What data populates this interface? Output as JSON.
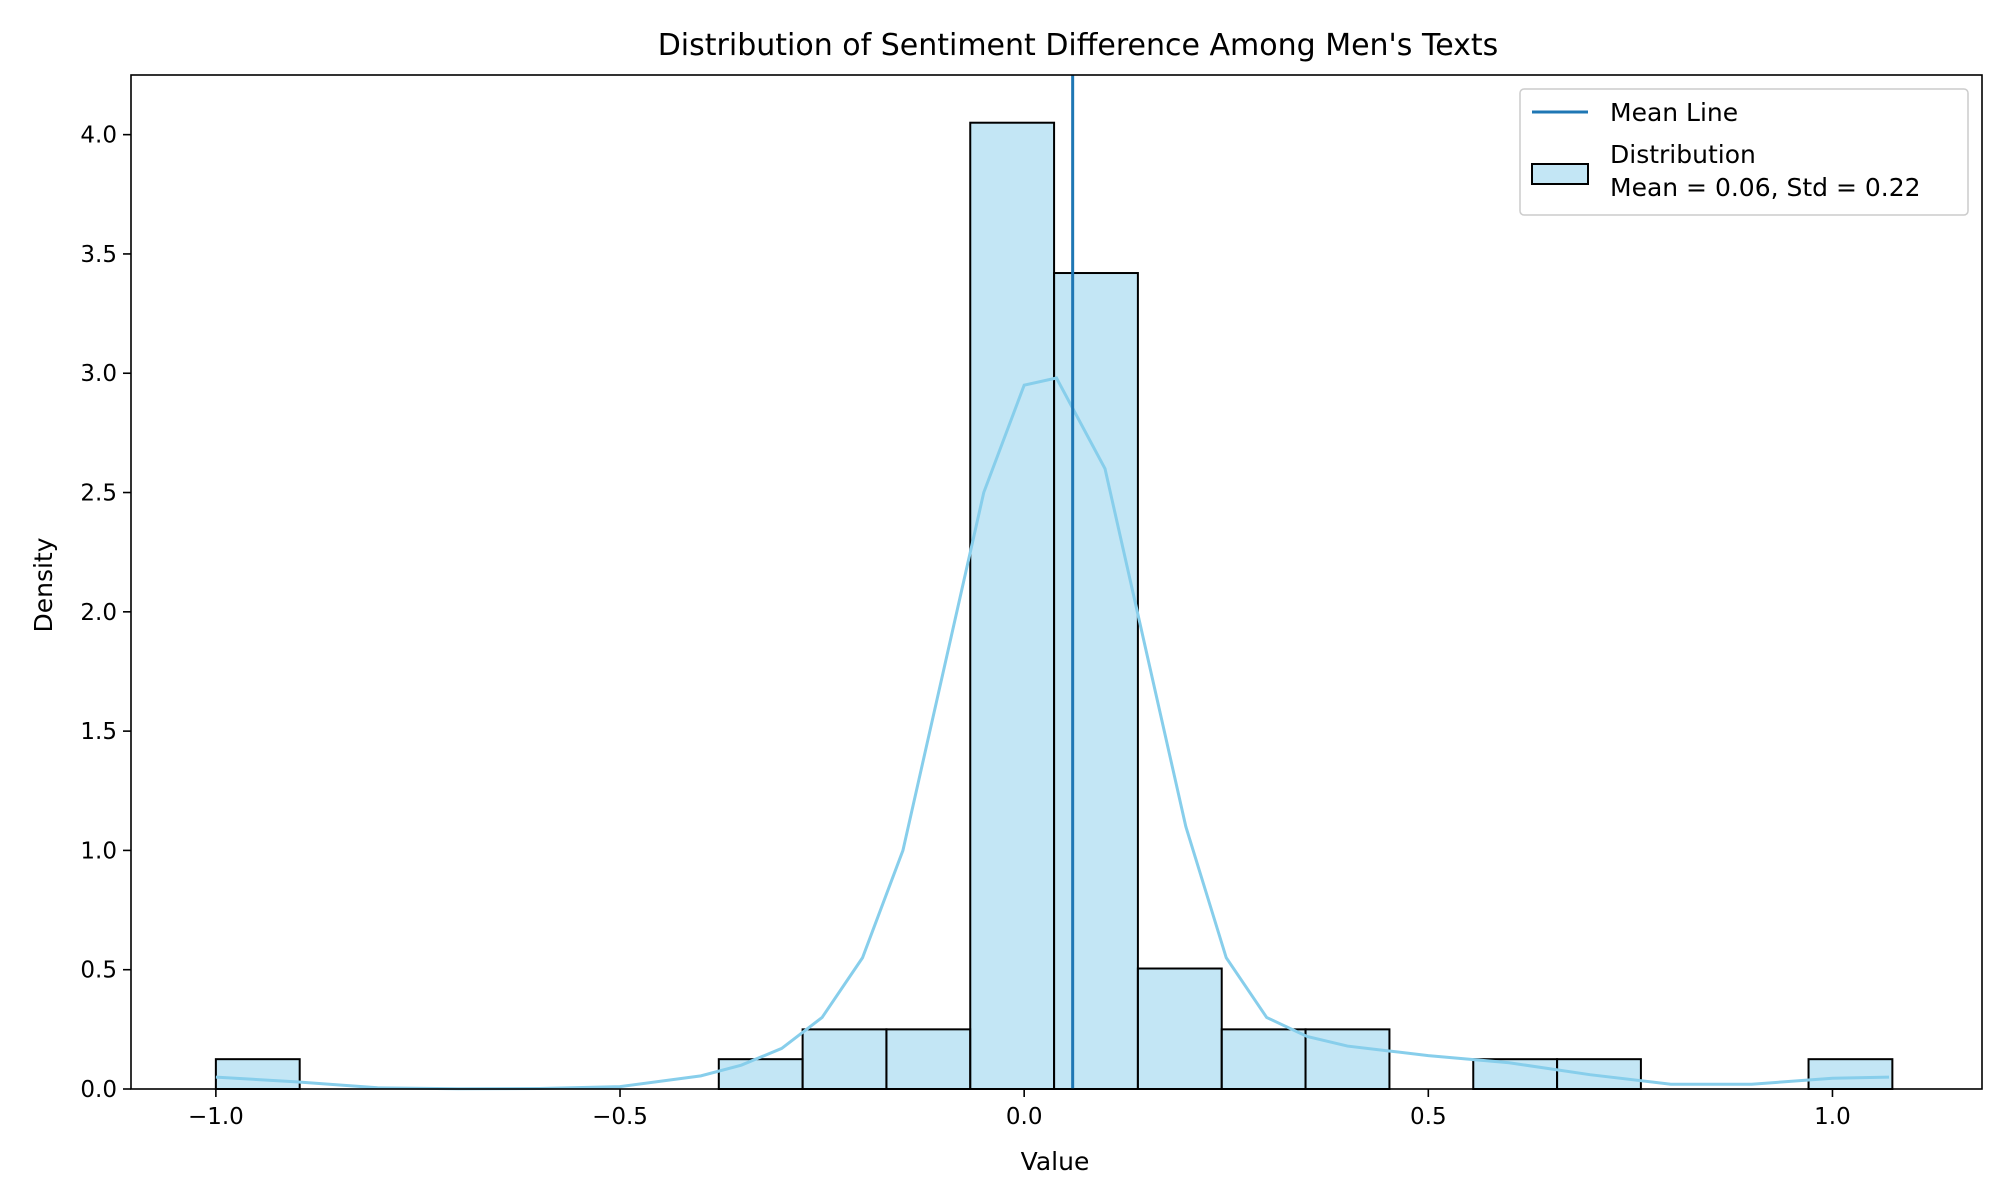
{
  "chart_data": {
    "type": "histogram",
    "title": "Distribution of Sentiment Difference Among Men's Texts",
    "xlabel": "Value",
    "ylabel": "Density",
    "xlim": [
      -1.105,
      1.185
    ],
    "ylim": [
      0,
      4.25
    ],
    "xticks": [
      -1.0,
      -0.5,
      0.0,
      0.5,
      1.0
    ],
    "xtick_labels": [
      "−1.0",
      "−0.5",
      "0.0",
      "0.5",
      "1.0"
    ],
    "yticks": [
      0.0,
      0.5,
      1.0,
      1.5,
      2.0,
      2.5,
      3.0,
      3.5,
      4.0
    ],
    "ytick_labels": [
      "0.0",
      "0.5",
      "1.0",
      "1.5",
      "2.0",
      "2.5",
      "3.0",
      "3.5",
      "4.0"
    ],
    "grid": false,
    "legend_position": "top-right",
    "bin_edges": [
      -1.0,
      -0.8963,
      -0.7926,
      -0.6889,
      -0.5852,
      -0.4815,
      -0.3778,
      -0.2741,
      -0.1704,
      -0.0667,
      0.037,
      0.1407,
      0.2444,
      0.3481,
      0.4519,
      0.5556,
      0.6593,
      0.763,
      0.8667,
      0.9704,
      1.0741
    ],
    "densities": [
      0.125,
      0,
      0,
      0,
      0,
      0,
      0.125,
      0.25,
      0.25,
      4.05,
      3.42,
      0.505,
      0.25,
      0.25,
      0,
      0.125,
      0.125,
      0,
      0,
      0.125
    ],
    "kde": {
      "x": [
        -1.0,
        -0.9,
        -0.8,
        -0.7,
        -0.6,
        -0.5,
        -0.4,
        -0.35,
        -0.3,
        -0.25,
        -0.2,
        -0.15,
        -0.1,
        -0.05,
        0.0,
        0.04,
        0.1,
        0.15,
        0.2,
        0.25,
        0.3,
        0.35,
        0.4,
        0.45,
        0.5,
        0.6,
        0.7,
        0.8,
        0.9,
        1.0,
        1.07
      ],
      "y": [
        0.05,
        0.03,
        0.005,
        0.001,
        0.002,
        0.01,
        0.055,
        0.1,
        0.17,
        0.3,
        0.55,
        1.0,
        1.75,
        2.5,
        2.95,
        2.98,
        2.6,
        1.85,
        1.1,
        0.55,
        0.3,
        0.22,
        0.18,
        0.16,
        0.14,
        0.11,
        0.06,
        0.02,
        0.02,
        0.045,
        0.05
      ]
    },
    "mean_line": 0.06,
    "colors": {
      "bar_fill": "#87ceeb",
      "bar_fill_opacity": 0.5,
      "bar_edge": "#000000",
      "kde": "#87ceeb",
      "mean_line": "#1f77b4"
    },
    "legend": [
      {
        "label": "Mean Line",
        "kind": "line"
      },
      {
        "label": "Distribution",
        "label2": "Mean = 0.06, Std = 0.22",
        "kind": "patch"
      }
    ]
  }
}
